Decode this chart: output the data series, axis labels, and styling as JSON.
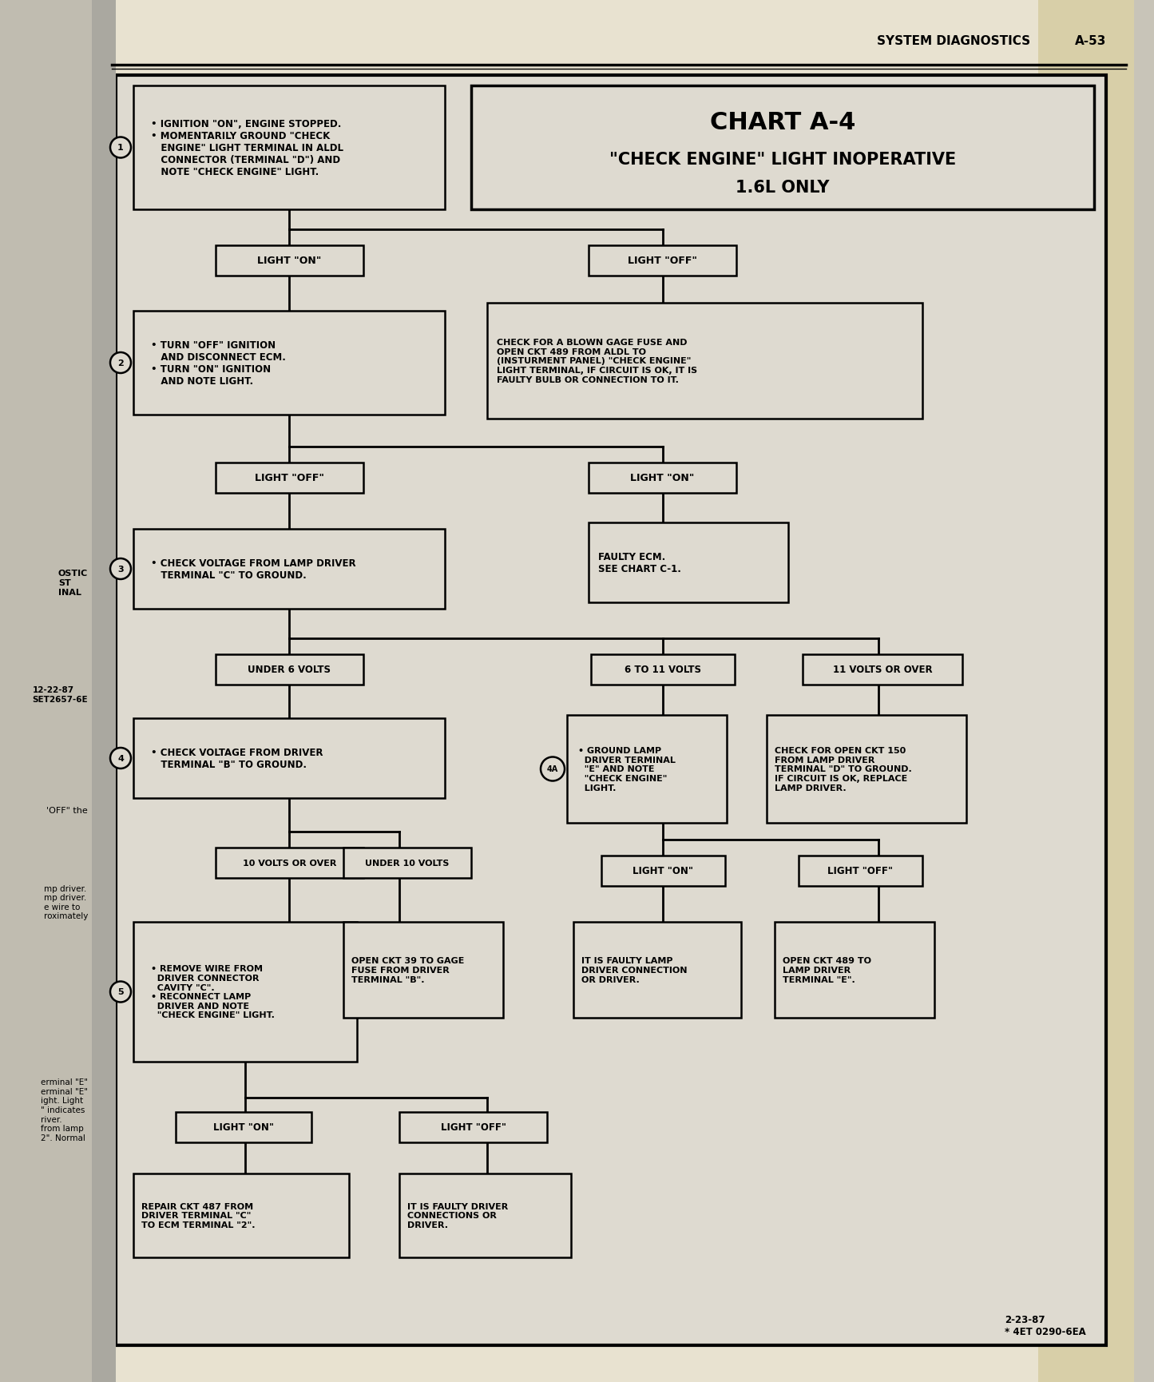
{
  "page_header_left": "SYSTEM DIAGNOSTICS",
  "page_header_right": "A-53",
  "bg_color": "#c8c4b8",
  "page_color": "#e8e2d0",
  "chart_bg": "#dedad0",
  "title_line1": "CHART A-4",
  "title_line2": "\"CHECK ENGINE\" LIGHT INOPERATIVE",
  "title_line3": "1.6L ONLY",
  "footer": "2-23-87\n* 4ET 0290-6EA",
  "left_margin_text1": "OSTIC\nST\nINAL",
  "left_margin_text2": "12-22-87\nSET2657-6E",
  "left_side_text": "'OFF' the",
  "left_side_text2": "mp driver.\nmp driver.\ne wire to\nroximately",
  "left_side_text3": "erminal \"E\"\nerminal \"E\"\night. Light\n\" indicates\nriver.\nfrom lamp\n2\". Normal"
}
